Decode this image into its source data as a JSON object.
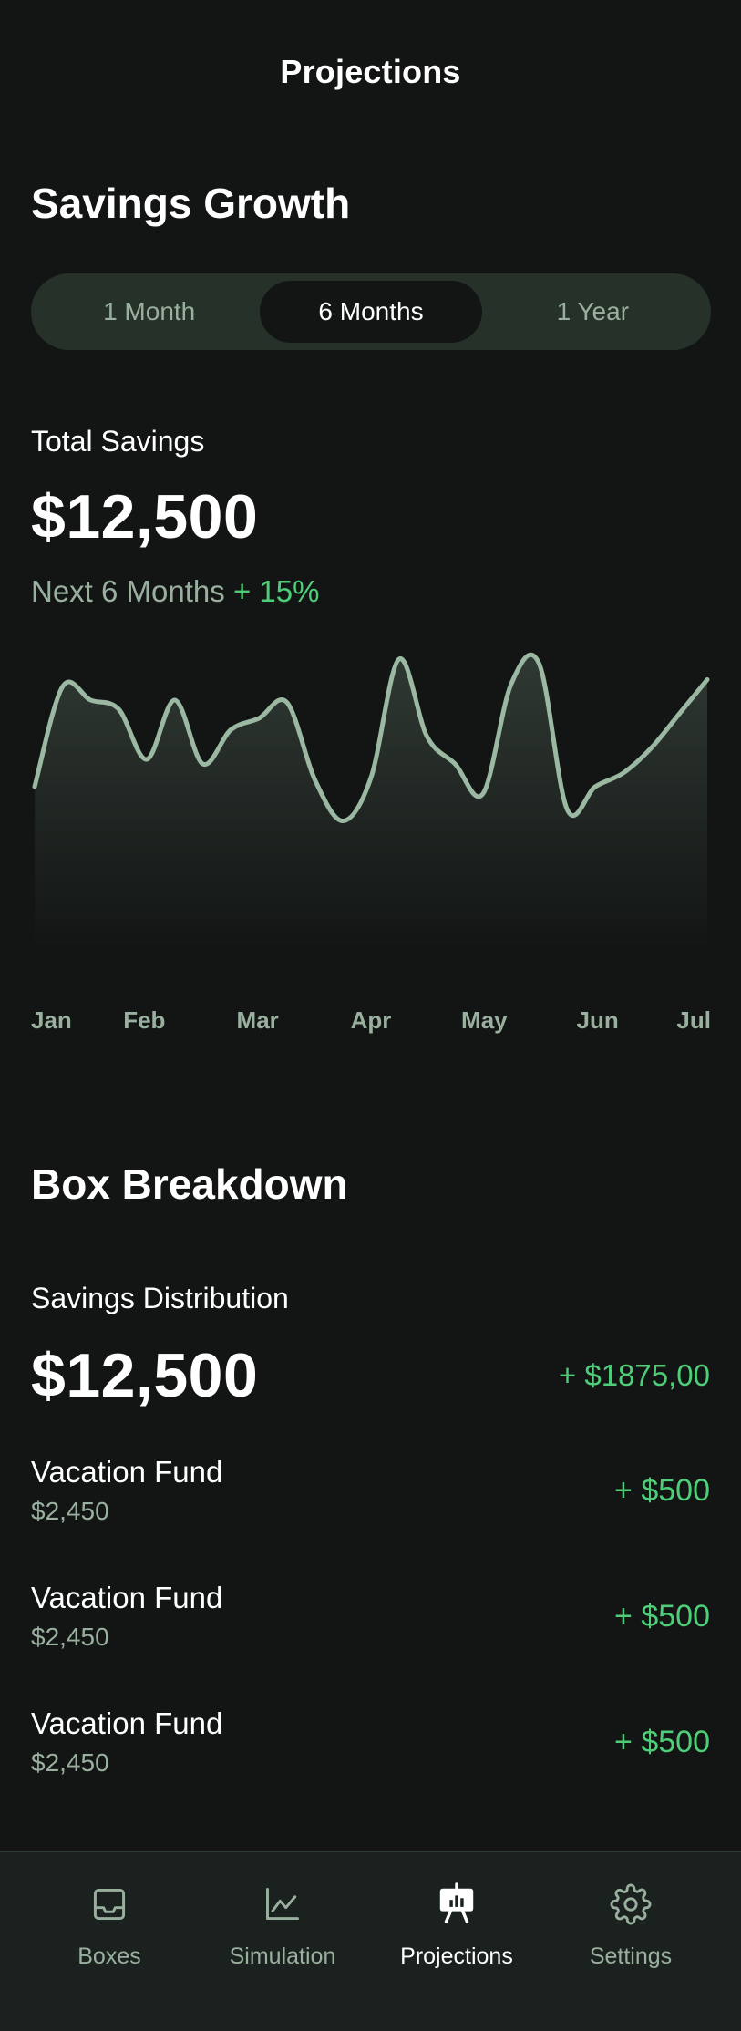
{
  "header": {
    "title": "Projections"
  },
  "growth": {
    "title": "Savings Growth",
    "periods": [
      "1 Month",
      "6 Months",
      "1 Year"
    ],
    "selected_period": "6 Months",
    "total_label": "Total Savings",
    "total_value": "$12,500",
    "next_label": "Next 6 Months",
    "change": "+ 15%"
  },
  "chart_data": {
    "type": "line",
    "title": "",
    "xlabel": "",
    "ylabel": "",
    "categories": [
      "Jan",
      "Feb",
      "Mar",
      "Apr",
      "May",
      "Jun",
      "Jul"
    ],
    "x": [
      0,
      0.25,
      0.5,
      0.75,
      1,
      1.25,
      1.5,
      1.75,
      2,
      2.25,
      2.5,
      2.75,
      3,
      3.25,
      3.5,
      3.75,
      4,
      4.25,
      4.5,
      4.75,
      5,
      5.25,
      5.5,
      5.75,
      6
    ],
    "series": [
      {
        "name": "Savings",
        "values": [
          38,
          82,
          76,
          72,
          50,
          76,
          48,
          63,
          68,
          75,
          41,
          23,
          42,
          94,
          60,
          48,
          35,
          83,
          92,
          28,
          38,
          44,
          55,
          70,
          85
        ]
      }
    ],
    "ylim": [
      0,
      100
    ],
    "grid": false
  },
  "breakdown": {
    "title": "Box Breakdown",
    "dist_label": "Savings Distribution",
    "dist_value": "$12,500",
    "dist_delta": "+ $1875,00",
    "funds": [
      {
        "name": "Vacation Fund",
        "value": "$2,450",
        "delta": "+ $500"
      },
      {
        "name": "Vacation Fund",
        "value": "$2,450",
        "delta": "+ $500"
      },
      {
        "name": "Vacation Fund",
        "value": "$2,450",
        "delta": "+ $500"
      }
    ]
  },
  "tabs": [
    {
      "label": "Boxes",
      "icon": "inbox-icon"
    },
    {
      "label": "Simulation",
      "icon": "line-chart-icon"
    },
    {
      "label": "Projections",
      "icon": "presentation-chart-icon"
    },
    {
      "label": "Settings",
      "icon": "gear-icon"
    }
  ],
  "colors": {
    "accent": "#4fce7a",
    "muted": "#9ab09f",
    "line": "#9ab8a2",
    "background": "#121514"
  }
}
